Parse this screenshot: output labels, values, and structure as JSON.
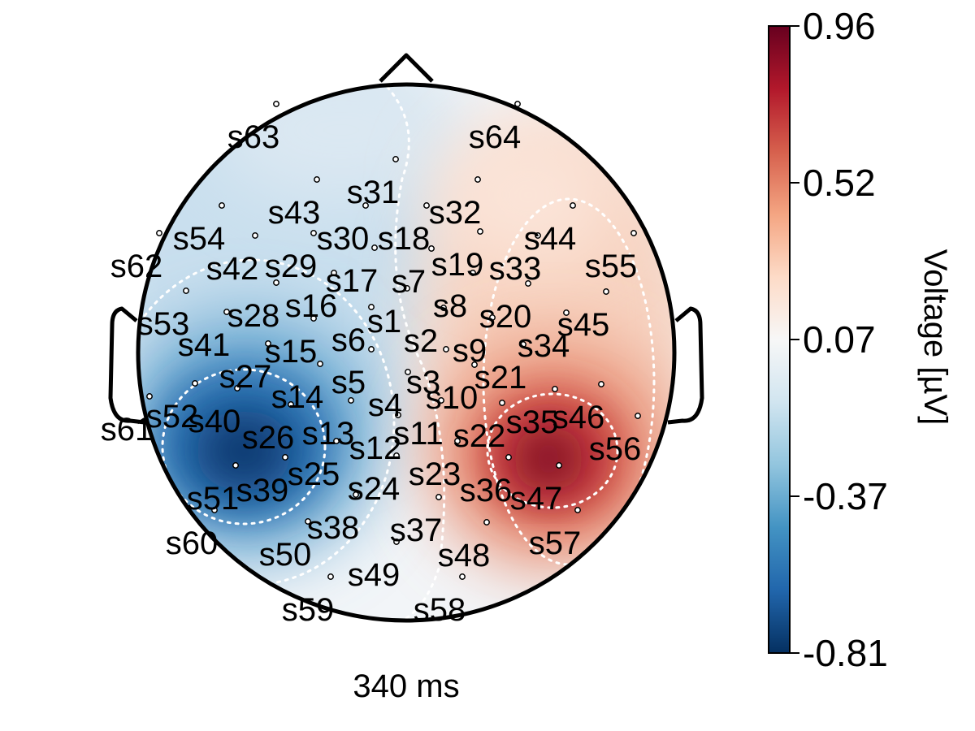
{
  "chart_data": {
    "type": "heatmap",
    "subtype": "topographic-scalp-map",
    "time_label": "340 ms",
    "colorbar": {
      "label": "Voltage [µV]",
      "ticks": [
        "0.96",
        "0.52",
        "0.07",
        "-0.37",
        "-0.81"
      ],
      "min": -0.81,
      "max": 0.96,
      "colormap": "RdBu_r",
      "colors": [
        "#053061",
        "#2166ac",
        "#4393c3",
        "#92c5de",
        "#d1e5f0",
        "#f7f7f7",
        "#fddbc7",
        "#f4a582",
        "#d6604d",
        "#b2182b",
        "#67001f"
      ]
    },
    "extrema": [
      {
        "label": "negative peak",
        "value": -0.81
      },
      {
        "label": "positive peak",
        "value": 0.96
      }
    ],
    "sensors": [
      {
        "name": "s1"
      },
      {
        "name": "s2"
      },
      {
        "name": "s3"
      },
      {
        "name": "s4"
      },
      {
        "name": "s5"
      },
      {
        "name": "s6"
      },
      {
        "name": "s7"
      },
      {
        "name": "s8"
      },
      {
        "name": "s9"
      },
      {
        "name": "s10"
      },
      {
        "name": "s11"
      },
      {
        "name": "s12"
      },
      {
        "name": "s13"
      },
      {
        "name": "s14"
      },
      {
        "name": "s15"
      },
      {
        "name": "s16"
      },
      {
        "name": "s17"
      },
      {
        "name": "s18"
      },
      {
        "name": "s19"
      },
      {
        "name": "s20"
      },
      {
        "name": "s21"
      },
      {
        "name": "s22"
      },
      {
        "name": "s23"
      },
      {
        "name": "s24"
      },
      {
        "name": "s25"
      },
      {
        "name": "s26"
      },
      {
        "name": "s27"
      },
      {
        "name": "s28"
      },
      {
        "name": "s29"
      },
      {
        "name": "s30"
      },
      {
        "name": "s31"
      },
      {
        "name": "s32"
      },
      {
        "name": "s33"
      },
      {
        "name": "s34"
      },
      {
        "name": "s35"
      },
      {
        "name": "s36"
      },
      {
        "name": "s37"
      },
      {
        "name": "s38"
      },
      {
        "name": "s39"
      },
      {
        "name": "s40"
      },
      {
        "name": "s41"
      },
      {
        "name": "s42"
      },
      {
        "name": "s43"
      },
      {
        "name": "s44"
      },
      {
        "name": "s45"
      },
      {
        "name": "s46"
      },
      {
        "name": "s47"
      },
      {
        "name": "s48"
      },
      {
        "name": "s49"
      },
      {
        "name": "s50"
      },
      {
        "name": "s51"
      },
      {
        "name": "s52"
      },
      {
        "name": "s53"
      },
      {
        "name": "s54"
      },
      {
        "name": "s55"
      },
      {
        "name": "s56"
      },
      {
        "name": "s57"
      },
      {
        "name": "s58"
      },
      {
        "name": "s59"
      },
      {
        "name": "s60"
      },
      {
        "name": "s61"
      },
      {
        "name": "s62"
      },
      {
        "name": "s63"
      },
      {
        "name": "s64"
      }
    ]
  }
}
